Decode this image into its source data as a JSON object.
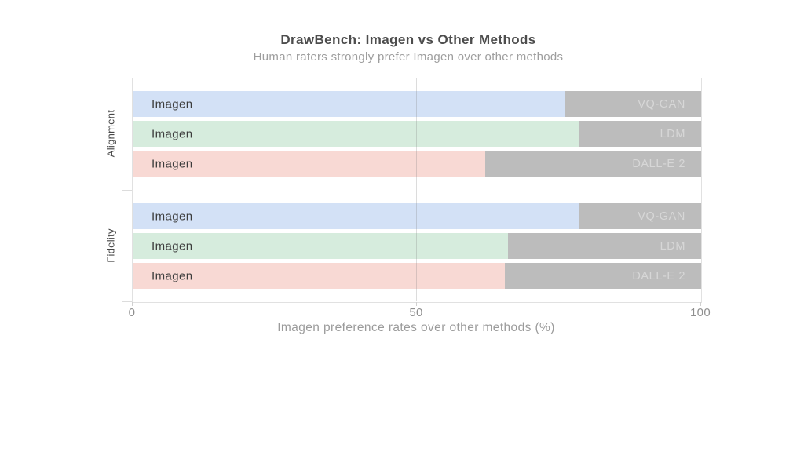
{
  "chart_data": {
    "type": "bar",
    "orientation": "horizontal",
    "stacked": true,
    "title": "DrawBench: Imagen vs Other Methods",
    "subtitle": "Human raters strongly prefer Imagen over other methods",
    "xlabel": "Imagen preference rates over other methods (%)",
    "xlim": [
      0,
      100
    ],
    "x_ticks": [
      "0",
      "50",
      "100"
    ],
    "grid": "vertical gridline at 50, panel border on, legend none",
    "groups": [
      {
        "label": "Alignment",
        "rows": [
          {
            "winner": "Imagen",
            "opponent": "VQ-GAN",
            "imagen_pct": 76,
            "opponent_pct": 24,
            "imagen_color": "#d3e1f6"
          },
          {
            "winner": "Imagen",
            "opponent": "LDM",
            "imagen_pct": 78.5,
            "opponent_pct": 21.5,
            "imagen_color": "#d6ecdd"
          },
          {
            "winner": "Imagen",
            "opponent": "DALL-E 2",
            "imagen_pct": 62,
            "opponent_pct": 38,
            "imagen_color": "#f8d9d4"
          }
        ]
      },
      {
        "label": "Fidelity",
        "rows": [
          {
            "winner": "Imagen",
            "opponent": "VQ-GAN",
            "imagen_pct": 78.5,
            "opponent_pct": 21.5,
            "imagen_color": "#d3e1f6"
          },
          {
            "winner": "Imagen",
            "opponent": "LDM",
            "imagen_pct": 66,
            "opponent_pct": 34,
            "imagen_color": "#d6ecdd"
          },
          {
            "winner": "Imagen",
            "opponent": "DALL-E 2",
            "imagen_pct": 65.5,
            "opponent_pct": 34.5,
            "imagen_color": "#f8d9d4"
          }
        ]
      }
    ],
    "colors": {
      "imagen_blue": "#d3e1f6",
      "imagen_green": "#d6ecdd",
      "imagen_pink": "#f8d9d4",
      "opponent_gray": "#bcbcbc",
      "title_text": "#4d4d4d",
      "subtitle_text": "#9e9e9e",
      "axis_text": "#8f8f8f"
    }
  }
}
